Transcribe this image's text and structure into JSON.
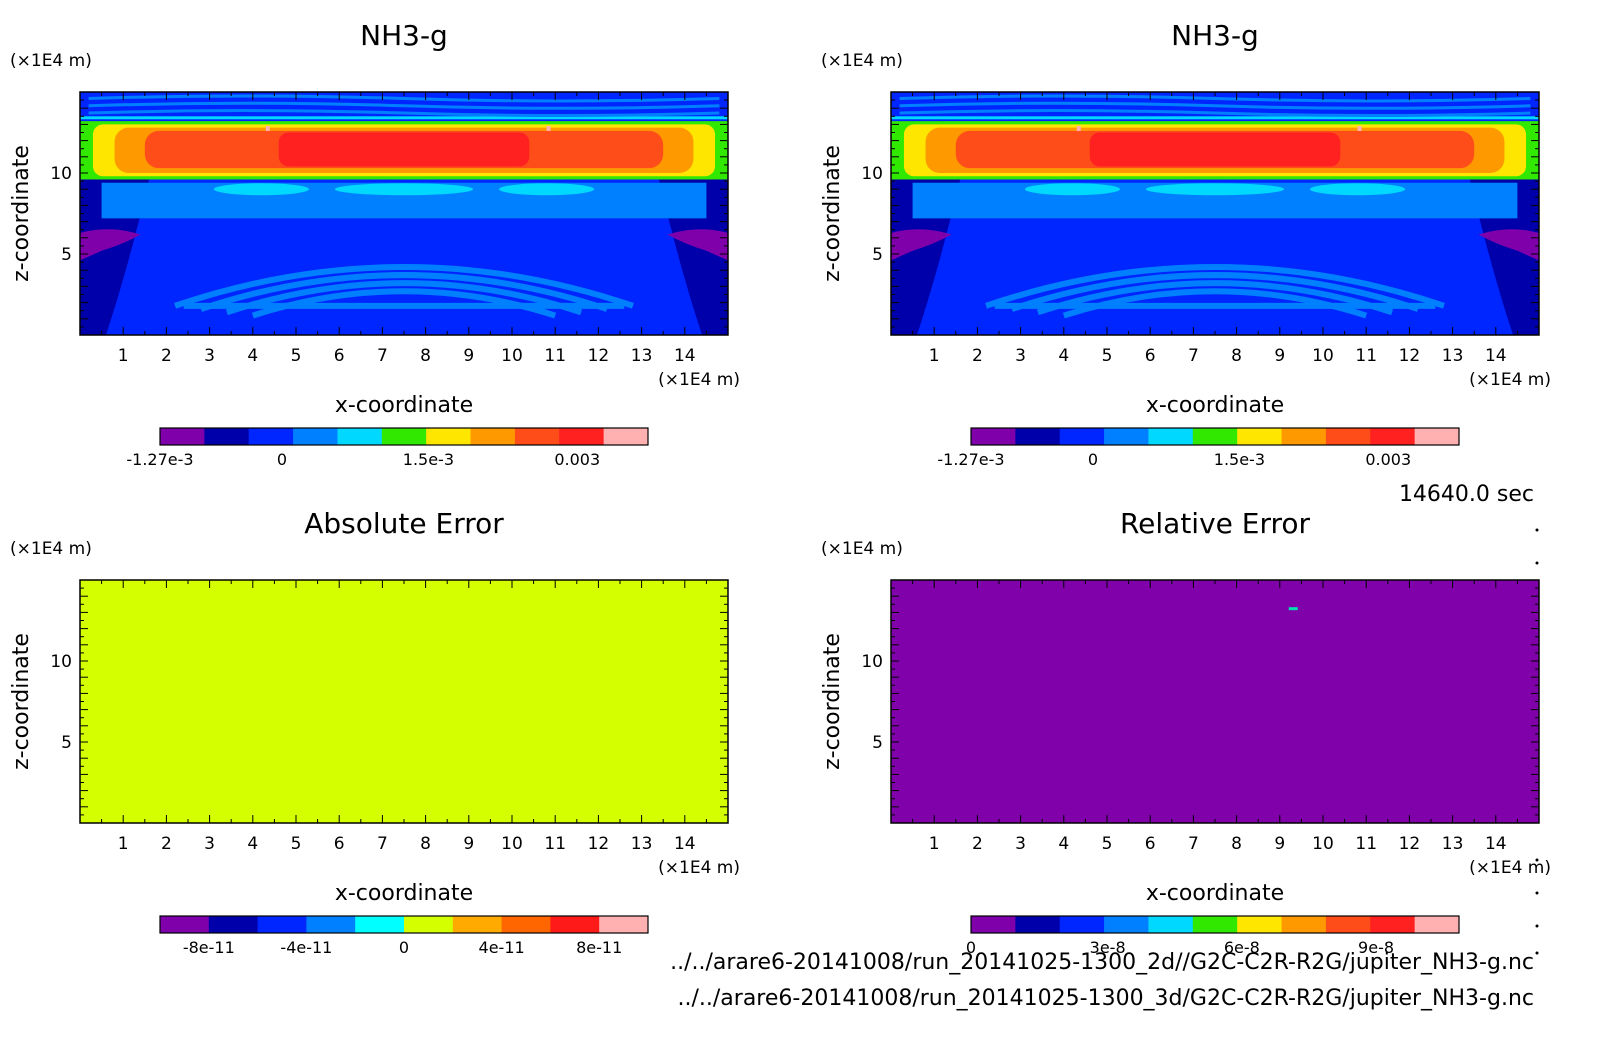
{
  "time_label": "14640.0 sec",
  "paths": [
    "../../arare6-20141008/run_20141025-1300_2d//G2C-C2R-R2G/jupiter_NH3-g.nc",
    "../../arare6-20141008/run_20141025-1300_3d/G2C-C2R-R2G/jupiter_NH3-g.nc"
  ],
  "chart_data": [
    {
      "type": "heatmap",
      "title": "NH3-g",
      "xlabel": "x-coordinate",
      "ylabel": "z-coordinate",
      "x_unit": "(×1E4 m)",
      "y_unit": "(×1E4 m)",
      "xlim": [
        0,
        15
      ],
      "ylim": [
        0,
        15
      ],
      "x_ticks": [
        "1",
        "2",
        "3",
        "4",
        "5",
        "6",
        "7",
        "8",
        "9",
        "10",
        "11",
        "12",
        "13",
        "14"
      ],
      "y_ticks": [
        "5",
        "10"
      ],
      "field": "nh3_profile",
      "colorbar": {
        "colors": [
          "#7f00aa",
          "#0000aa",
          "#0026ff",
          "#0080ff",
          "#00d8ff",
          "#30e800",
          "#ffe600",
          "#ff9900",
          "#ff4d1a",
          "#ff2020",
          "#ffb0b0"
        ],
        "tick_labels": [
          "-1.27e-3",
          "0",
          "1.5e-3",
          "0.003"
        ],
        "tick_positions": [
          0.0,
          0.25,
          0.55,
          0.855
        ]
      }
    },
    {
      "type": "heatmap",
      "title": "NH3-g",
      "xlabel": "x-coordinate",
      "ylabel": "z-coordinate",
      "x_unit": "(×1E4 m)",
      "y_unit": "(×1E4 m)",
      "xlim": [
        0,
        15
      ],
      "ylim": [
        0,
        15
      ],
      "x_ticks": [
        "1",
        "2",
        "3",
        "4",
        "5",
        "6",
        "7",
        "8",
        "9",
        "10",
        "11",
        "12",
        "13",
        "14"
      ],
      "y_ticks": [
        "5",
        "10"
      ],
      "field": "nh3_profile",
      "colorbar": {
        "colors": [
          "#7f00aa",
          "#0000aa",
          "#0026ff",
          "#0080ff",
          "#00d8ff",
          "#30e800",
          "#ffe600",
          "#ff9900",
          "#ff4d1a",
          "#ff2020",
          "#ffb0b0"
        ],
        "tick_labels": [
          "-1.27e-3",
          "0",
          "1.5e-3",
          "0.003"
        ],
        "tick_positions": [
          0.0,
          0.25,
          0.55,
          0.855
        ]
      }
    },
    {
      "type": "heatmap",
      "title": "Absolute Error",
      "xlabel": "x-coordinate",
      "ylabel": "z-coordinate",
      "x_unit": "(×1E4 m)",
      "y_unit": "(×1E4 m)",
      "xlim": [
        0,
        15
      ],
      "ylim": [
        0,
        15
      ],
      "x_ticks": [
        "1",
        "2",
        "3",
        "4",
        "5",
        "6",
        "7",
        "8",
        "9",
        "10",
        "11",
        "12",
        "13",
        "14"
      ],
      "y_ticks": [
        "5",
        "10"
      ],
      "field": "uniform",
      "fill_color": "#d4ff00",
      "colorbar": {
        "colors": [
          "#7f00aa",
          "#0000aa",
          "#0026ff",
          "#0080ff",
          "#00ffff",
          "#d4ff00",
          "#ffaa00",
          "#ff6600",
          "#ff1a1a",
          "#ffb0b0"
        ],
        "tick_labels": [
          "-8e-11",
          "-4e-11",
          "0",
          "4e-11",
          "8e-11"
        ],
        "tick_positions": [
          0.1,
          0.3,
          0.5,
          0.7,
          0.9
        ]
      }
    },
    {
      "type": "heatmap",
      "title": "Relative Error",
      "xlabel": "x-coordinate",
      "ylabel": "z-coordinate",
      "x_unit": "(×1E4 m)",
      "y_unit": "(×1E4 m)",
      "xlim": [
        0,
        15
      ],
      "ylim": [
        0,
        15
      ],
      "x_ticks": [
        "1",
        "2",
        "3",
        "4",
        "5",
        "6",
        "7",
        "8",
        "9",
        "10",
        "11",
        "12",
        "13",
        "14"
      ],
      "y_ticks": [
        "5",
        "10"
      ],
      "field": "uniform",
      "fill_color": "#8000aa",
      "spot": {
        "x": 9.3,
        "y": 13.2
      },
      "colorbar": {
        "colors": [
          "#7f00aa",
          "#0000aa",
          "#0026ff",
          "#0080ff",
          "#00d8ff",
          "#30e800",
          "#ffe600",
          "#ff9900",
          "#ff4d1a",
          "#ff2020",
          "#ffb0b0"
        ],
        "tick_labels": [
          "0",
          "3e-8",
          "6e-8",
          "9e-8"
        ],
        "tick_positions": [
          0.0,
          0.28,
          0.555,
          0.83
        ]
      }
    }
  ]
}
